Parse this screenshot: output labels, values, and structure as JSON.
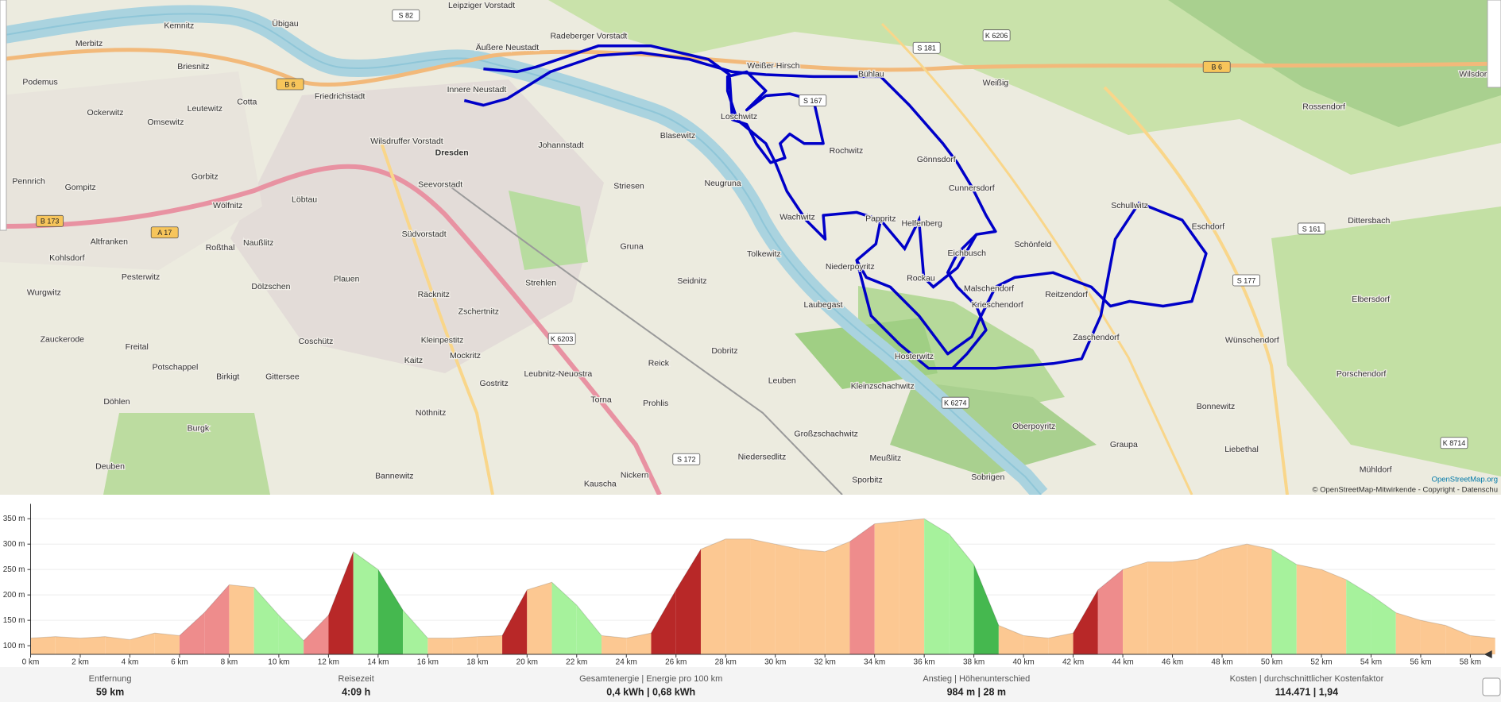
{
  "map": {
    "labels": [
      "Dresden",
      "Innere Neustadt",
      "Äußere Neustadt",
      "Radeberger Vorstadt",
      "Leipziger Vorstadt",
      "Übigau",
      "Kemnitz",
      "Briesnitz",
      "Cotta",
      "Friedrichstadt",
      "Wilsdruffer Vorstadt",
      "Johannstadt",
      "Blasewitz",
      "Loschwitz",
      "Weißer Hirsch",
      "Bühlau",
      "Rochwitz",
      "Gönnsdorf",
      "Cunnersdorf",
      "Schönfeld",
      "Schullwitz",
      "Eschdorf",
      "Wachwitz",
      "Pappritz",
      "Helfenberg",
      "Eichbusch",
      "Rockau",
      "Niederpoyritz",
      "Malschendorf",
      "Krieschendorf",
      "Reitzendorf",
      "Zaschendorf",
      "Hosterwitz",
      "Laubegast",
      "Tolkewitz",
      "Seidnitz",
      "Gruna",
      "Striesen",
      "Neugruna",
      "Strehlen",
      "Südvorstadt",
      "Seevorstadt",
      "Löbtau",
      "Plauen",
      "Räcknitz",
      "Zschertnitz",
      "Leuben",
      "Kleinzschachwitz",
      "Großzschachwitz",
      "Reick",
      "Prohlis",
      "Torna",
      "Mockritz",
      "Gostritz",
      "Leubnitz-Neuostra",
      "Dobritz",
      "Niedersedlitz",
      "Meußlitz",
      "Sporbitz",
      "Sobrigen",
      "Oberpoyritz",
      "Graupa",
      "Bonnewitz",
      "Wünschendorf",
      "Rossendorf",
      "Weißig",
      "Dittersbach",
      "Elbersdorf",
      "Porschendorf",
      "Liebethal",
      "Mühldorf",
      "Wilsdorf",
      "Freital",
      "Potschappel",
      "Coschütz",
      "Birkigt",
      "Gittersee",
      "Kaitz",
      "Kleinpestitz",
      "Nöthnitz",
      "Bannewitz",
      "Kauscha",
      "Nickern",
      "Burgk",
      "Döhlen",
      "Deuben",
      "Gorbitz",
      "Wölfnitz",
      "Gompitz",
      "Pennrich",
      "Altfranken",
      "Roßthal",
      "Naußlitz",
      "Dölzschen",
      "Pesterwitz",
      "Kohlsdorf",
      "Wurgwitz",
      "Zauckerode",
      "Omsewitz",
      "Ockerwitz",
      "Leutewitz",
      "Podemus",
      "Merbitz"
    ],
    "road_refs": [
      "B 6",
      "B 6",
      "A 17",
      "B 173",
      "S 82",
      "S 181",
      "K 6206",
      "S 167",
      "S 161",
      "S 177",
      "K 6203",
      "S 172",
      "K 6274",
      "K 8714"
    ],
    "attribution_link": "OpenStreetMap.org",
    "attribution": "© OpenStreetMap-Mitwirkende - Copyright - Datenschu"
  },
  "chart_data": {
    "type": "area",
    "x": [
      0,
      1,
      2,
      3,
      4,
      5,
      6,
      7,
      8,
      9,
      10,
      11,
      12,
      13,
      14,
      15,
      16,
      17,
      18,
      19,
      20,
      21,
      22,
      23,
      24,
      25,
      26,
      27,
      28,
      29,
      30,
      31,
      32,
      33,
      34,
      35,
      36,
      37,
      38,
      39,
      40,
      41,
      42,
      43,
      44,
      45,
      46,
      47,
      48,
      49,
      50,
      51,
      52,
      53,
      54,
      55,
      56,
      57,
      58,
      59
    ],
    "values": [
      115,
      118,
      115,
      118,
      112,
      125,
      120,
      165,
      220,
      215,
      160,
      110,
      160,
      285,
      250,
      170,
      115,
      115,
      118,
      120,
      210,
      225,
      180,
      120,
      115,
      125,
      210,
      290,
      310,
      310,
      300,
      290,
      285,
      305,
      340,
      345,
      350,
      320,
      260,
      140,
      120,
      115,
      125,
      210,
      250,
      265,
      265,
      270,
      290,
      300,
      290,
      260,
      250,
      230,
      200,
      165,
      150,
      140,
      120,
      115
    ],
    "xlim": [
      0,
      59
    ],
    "ylim": [
      83,
      373
    ],
    "xticks": [
      {
        "value": 0,
        "label": "0 km"
      },
      {
        "value": 2,
        "label": "2 km"
      },
      {
        "value": 4,
        "label": "4 km"
      },
      {
        "value": 6,
        "label": "6 km"
      },
      {
        "value": 8,
        "label": "8 km"
      },
      {
        "value": 10,
        "label": "10 km"
      },
      {
        "value": 12,
        "label": "12 km"
      },
      {
        "value": 14,
        "label": "14 km"
      },
      {
        "value": 16,
        "label": "16 km"
      },
      {
        "value": 18,
        "label": "18 km"
      },
      {
        "value": 20,
        "label": "20 km"
      },
      {
        "value": 22,
        "label": "22 km"
      },
      {
        "value": 24,
        "label": "24 km"
      },
      {
        "value": 26,
        "label": "26 km"
      },
      {
        "value": 28,
        "label": "28 km"
      },
      {
        "value": 30,
        "label": "30 km"
      },
      {
        "value": 32,
        "label": "32 km"
      },
      {
        "value": 34,
        "label": "34 km"
      },
      {
        "value": 36,
        "label": "36 km"
      },
      {
        "value": 38,
        "label": "38 km"
      },
      {
        "value": 40,
        "label": "40 km"
      },
      {
        "value": 42,
        "label": "42 km"
      },
      {
        "value": 44,
        "label": "44 km"
      },
      {
        "value": 46,
        "label": "46 km"
      },
      {
        "value": 48,
        "label": "48 km"
      },
      {
        "value": 50,
        "label": "50 km"
      },
      {
        "value": 52,
        "label": "52 km"
      },
      {
        "value": 54,
        "label": "54 km"
      },
      {
        "value": 56,
        "label": "56 km"
      },
      {
        "value": 58,
        "label": "58 km"
      }
    ],
    "yticks": [
      {
        "value": 100,
        "label": "100 m"
      },
      {
        "value": 150,
        "label": "150 m"
      },
      {
        "value": 200,
        "label": "200 m"
      },
      {
        "value": 250,
        "label": "250 m"
      },
      {
        "value": 300,
        "label": "300 m"
      },
      {
        "value": 350,
        "label": "350 m"
      }
    ],
    "grid": true,
    "gradient_colors": [
      "#b82828",
      "#ee8c8c",
      "#fcc892",
      "#a6f29c",
      "#45b84f"
    ]
  },
  "stats": [
    {
      "label": "Entfernung",
      "value": "59 km"
    },
    {
      "label": "Reisezeit",
      "value": "4:09 h"
    },
    {
      "label": "Gesamtenergie | Energie pro 100 km",
      "value": "0,4 kWh | 0,68 kWh"
    },
    {
      "label": "Anstieg | Höhenunterschied",
      "value": "984 m | 28 m"
    },
    {
      "label": "Kosten | durchschnittlicher Kostenfaktor",
      "value": "114.471 | 1,94"
    }
  ]
}
